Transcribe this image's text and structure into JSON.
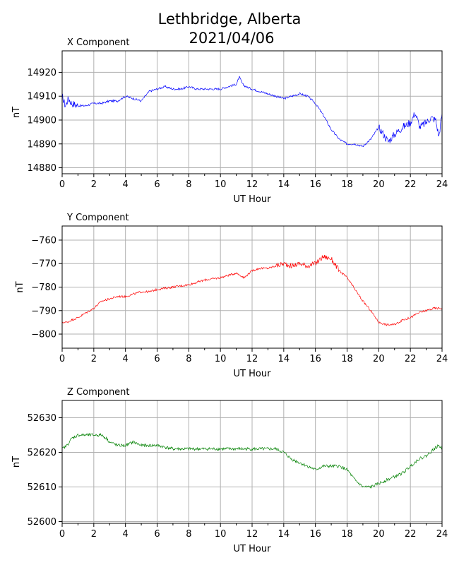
{
  "figure": {
    "title_line1": "Lethbridge, Alberta",
    "title_line2": "2021/04/06"
  },
  "chart_data": [
    {
      "type": "line",
      "title": "X Component",
      "xlabel": "UT Hour",
      "ylabel": "nT",
      "color": "#0000ff",
      "xlim": [
        0,
        24
      ],
      "ylim": [
        14877.5,
        14929
      ],
      "xticks": [
        0,
        2,
        4,
        6,
        8,
        10,
        12,
        14,
        16,
        18,
        20,
        22,
        24
      ],
      "yticks": [
        14880,
        14890,
        14900,
        14910,
        14920
      ],
      "grid": true,
      "series": [
        {
          "x": [
            0,
            0.2,
            0.4,
            0.6,
            1,
            1.5,
            2,
            2.5,
            3,
            3.5,
            4,
            4.5,
            5,
            5.5,
            6,
            6.5,
            7,
            7.5,
            8,
            8.5,
            9,
            9.5,
            10,
            10.5,
            11,
            11.2,
            11.4,
            11.6,
            12,
            12.5,
            13,
            13.5,
            14,
            14.5,
            15,
            15.5,
            16,
            16.5,
            17,
            17.5,
            18,
            18.5,
            19,
            19.5,
            20,
            20.3,
            20.6,
            21,
            21.5,
            22,
            22.3,
            22.6,
            23,
            23.3,
            23.6,
            23.8,
            24
          ],
          "y": [
            14910,
            14906,
            14909,
            14907,
            14906,
            14906,
            14907,
            14907,
            14908,
            14908,
            14910,
            14909,
            14908,
            14912,
            14913,
            14914,
            14913,
            14913,
            14914,
            14913,
            14913,
            14913,
            14913,
            14914,
            14915,
            14918,
            14915,
            14914,
            14913,
            14912,
            14911,
            14910,
            14909,
            14910,
            14911,
            14910,
            14907,
            14902,
            14896,
            14892,
            14890,
            14890,
            14889,
            14892,
            14897,
            14894,
            14891,
            14894,
            14897,
            14899,
            14903,
            14897,
            14899,
            14901,
            14900,
            14893,
            14903
          ]
        }
      ]
    },
    {
      "type": "line",
      "title": "Y Component",
      "xlabel": "UT Hour",
      "ylabel": "nT",
      "color": "#ff0000",
      "xlim": [
        0,
        24
      ],
      "ylim": [
        -806,
        -754
      ],
      "xticks": [
        0,
        2,
        4,
        6,
        8,
        10,
        12,
        14,
        16,
        18,
        20,
        22,
        24
      ],
      "yticks": [
        -760,
        -770,
        -780,
        -790,
        -800
      ],
      "grid": true,
      "series": [
        {
          "x": [
            0,
            0.3,
            0.6,
            1,
            1.5,
            2,
            2.5,
            3,
            3.5,
            4,
            4.5,
            5,
            5.5,
            6,
            7,
            8,
            9,
            10,
            11,
            11.5,
            12,
            12.5,
            13,
            13.5,
            14,
            14.5,
            15,
            15.5,
            16,
            16.5,
            17,
            17.5,
            18,
            18.5,
            19,
            19.5,
            20,
            20.5,
            21,
            21.5,
            22,
            22.5,
            23,
            23.5,
            24
          ],
          "y": [
            -795,
            -795,
            -794,
            -793,
            -791,
            -789,
            -786,
            -785,
            -784,
            -784,
            -783,
            -782,
            -782,
            -781,
            -780,
            -779,
            -777,
            -776,
            -774,
            -776,
            -773,
            -772,
            -772,
            -771,
            -770,
            -771,
            -770,
            -771,
            -770,
            -767,
            -768,
            -773,
            -776,
            -781,
            -786,
            -790,
            -795,
            -796,
            -796,
            -794,
            -793,
            -791,
            -790,
            -789,
            -789
          ]
        }
      ]
    },
    {
      "type": "line",
      "title": "Z Component",
      "xlabel": "UT Hour",
      "ylabel": "nT",
      "color": "#008000",
      "xlim": [
        0,
        24
      ],
      "ylim": [
        52599.5,
        52635
      ],
      "xticks": [
        0,
        2,
        4,
        6,
        8,
        10,
        12,
        14,
        16,
        18,
        20,
        22,
        24
      ],
      "yticks": [
        52600,
        52610,
        52620,
        52630
      ],
      "grid": true,
      "series": [
        {
          "x": [
            0,
            0.3,
            0.6,
            1,
            1.5,
            2,
            2.5,
            2.8,
            3,
            3.5,
            4,
            4.5,
            5,
            6,
            7,
            8,
            9,
            10,
            11,
            12,
            13,
            13.5,
            14,
            14.5,
            15,
            15.5,
            16,
            16.5,
            17,
            17.5,
            18,
            18.5,
            19,
            19.5,
            20,
            20.5,
            21,
            21.5,
            22,
            22.5,
            23,
            23.5,
            23.8,
            24
          ],
          "y": [
            52621,
            52622,
            52624,
            52625,
            52625,
            52625,
            52625,
            52624,
            52623,
            52622,
            52622,
            52623,
            52622,
            52622,
            52621,
            52621,
            52621,
            52621,
            52621,
            52621,
            52621,
            52621,
            52620,
            52618,
            52617,
            52616,
            52615,
            52616,
            52616,
            52616,
            52615,
            52612,
            52610,
            52610,
            52611,
            52612,
            52613,
            52614,
            52616,
            52618,
            52619,
            52621,
            52622,
            52621
          ]
        }
      ]
    }
  ]
}
